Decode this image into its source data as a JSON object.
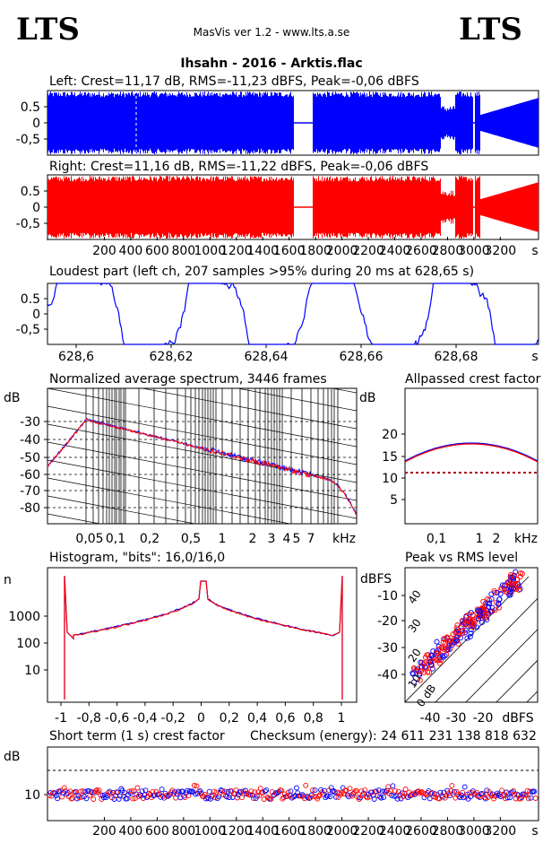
{
  "header": {
    "logo_left": "LTS",
    "logo_right": "LTS",
    "app_title": "MasVis ver 1.2 - www.lts.a.se",
    "file_title": "Ihsahn - 2016 - Arktis.flac"
  },
  "colors": {
    "left": "#0000ff",
    "right": "#ff0000"
  },
  "chart_data": [
    {
      "type": "area",
      "id": "left",
      "title": "Left: Crest=11,17 dB, RMS=-11,23 dBFS, Peak=-0,06 dBFS",
      "ylim": [
        -1,
        1
      ],
      "yticks": [
        "0.5",
        "0",
        "-0,5"
      ],
      "color": "#0000ff"
    },
    {
      "type": "area",
      "id": "right",
      "title": "Right: Crest=11,16 dB, RMS=-11,22 dBFS, Peak=-0,06 dBFS",
      "ylim": [
        -1,
        1
      ],
      "yticks": [
        "0.5",
        "0",
        "-0,5"
      ],
      "color": "#ff0000",
      "xticks": [
        "200",
        "400",
        "600",
        "800",
        "1000",
        "1200",
        "1400",
        "1600",
        "1800",
        "2000",
        "2200",
        "2400",
        "2600",
        "2800",
        "3000",
        "3200"
      ],
      "xunit": "s"
    },
    {
      "type": "line",
      "id": "loudest",
      "title": "Loudest part (left  ch, 207 samples >95% during 20 ms at 628,65 s)",
      "ylim": [
        -1,
        1
      ],
      "yticks": [
        "0.5",
        "0",
        "-0,5"
      ],
      "xticks": [
        "628,6",
        "628,62",
        "628,64",
        "628,66",
        "628,68"
      ],
      "xunit": "s"
    },
    {
      "type": "line",
      "id": "spectrum",
      "title": "Normalized average spectrum, 3446 frames",
      "ylabel": "dB",
      "yticks": [
        "-30",
        "-40",
        "-50",
        "-60",
        "-70",
        "-80"
      ],
      "xticks": [
        "0,05",
        "0,1",
        "0,2",
        "0,5",
        "1",
        "2",
        "3",
        "4",
        "5",
        "7"
      ],
      "xunit": "kHz"
    },
    {
      "type": "line",
      "id": "allpassed",
      "title": "Allpassed crest factor",
      "ylabel": "dB",
      "yticks": [
        "20",
        "15",
        "10",
        "5"
      ],
      "xticks": [
        "0,1",
        "1",
        "2"
      ],
      "xunit": "kHz"
    },
    {
      "type": "line",
      "id": "histogram",
      "title": "Histogram, \"bits\": 16,0/16,0",
      "ylabel": "n",
      "yticks": [
        "1000",
        "100",
        "10"
      ],
      "xticks": [
        "-1",
        "-0,8",
        "-0,6",
        "-0,4",
        "-0,2",
        "0",
        "0,2",
        "0,4",
        "0,6",
        "0,8",
        "1"
      ]
    },
    {
      "type": "scatter",
      "id": "peakrms",
      "title": "Peak vs RMS level",
      "ylabel": "dBFS",
      "yticks": [
        "-10",
        "-20",
        "-30",
        "-40"
      ],
      "xticks": [
        "-40",
        "-30",
        "-20"
      ],
      "xunit": "dBFS",
      "diag_labels": [
        "40",
        "30",
        "20",
        "10",
        "0 dB"
      ]
    },
    {
      "type": "scatter",
      "id": "shortcrest",
      "title": "Short term (1 s) crest factor",
      "checksum": "Checksum (energy):  24 611 231 138 818 632",
      "ylabel": "dB",
      "yticks": [
        "10"
      ],
      "xticks": [
        "200",
        "400",
        "600",
        "800",
        "1000",
        "1200",
        "1400",
        "1600",
        "1800",
        "2000",
        "2200",
        "2400",
        "2600",
        "2800",
        "3000",
        "3200"
      ],
      "xunit": "s"
    }
  ]
}
